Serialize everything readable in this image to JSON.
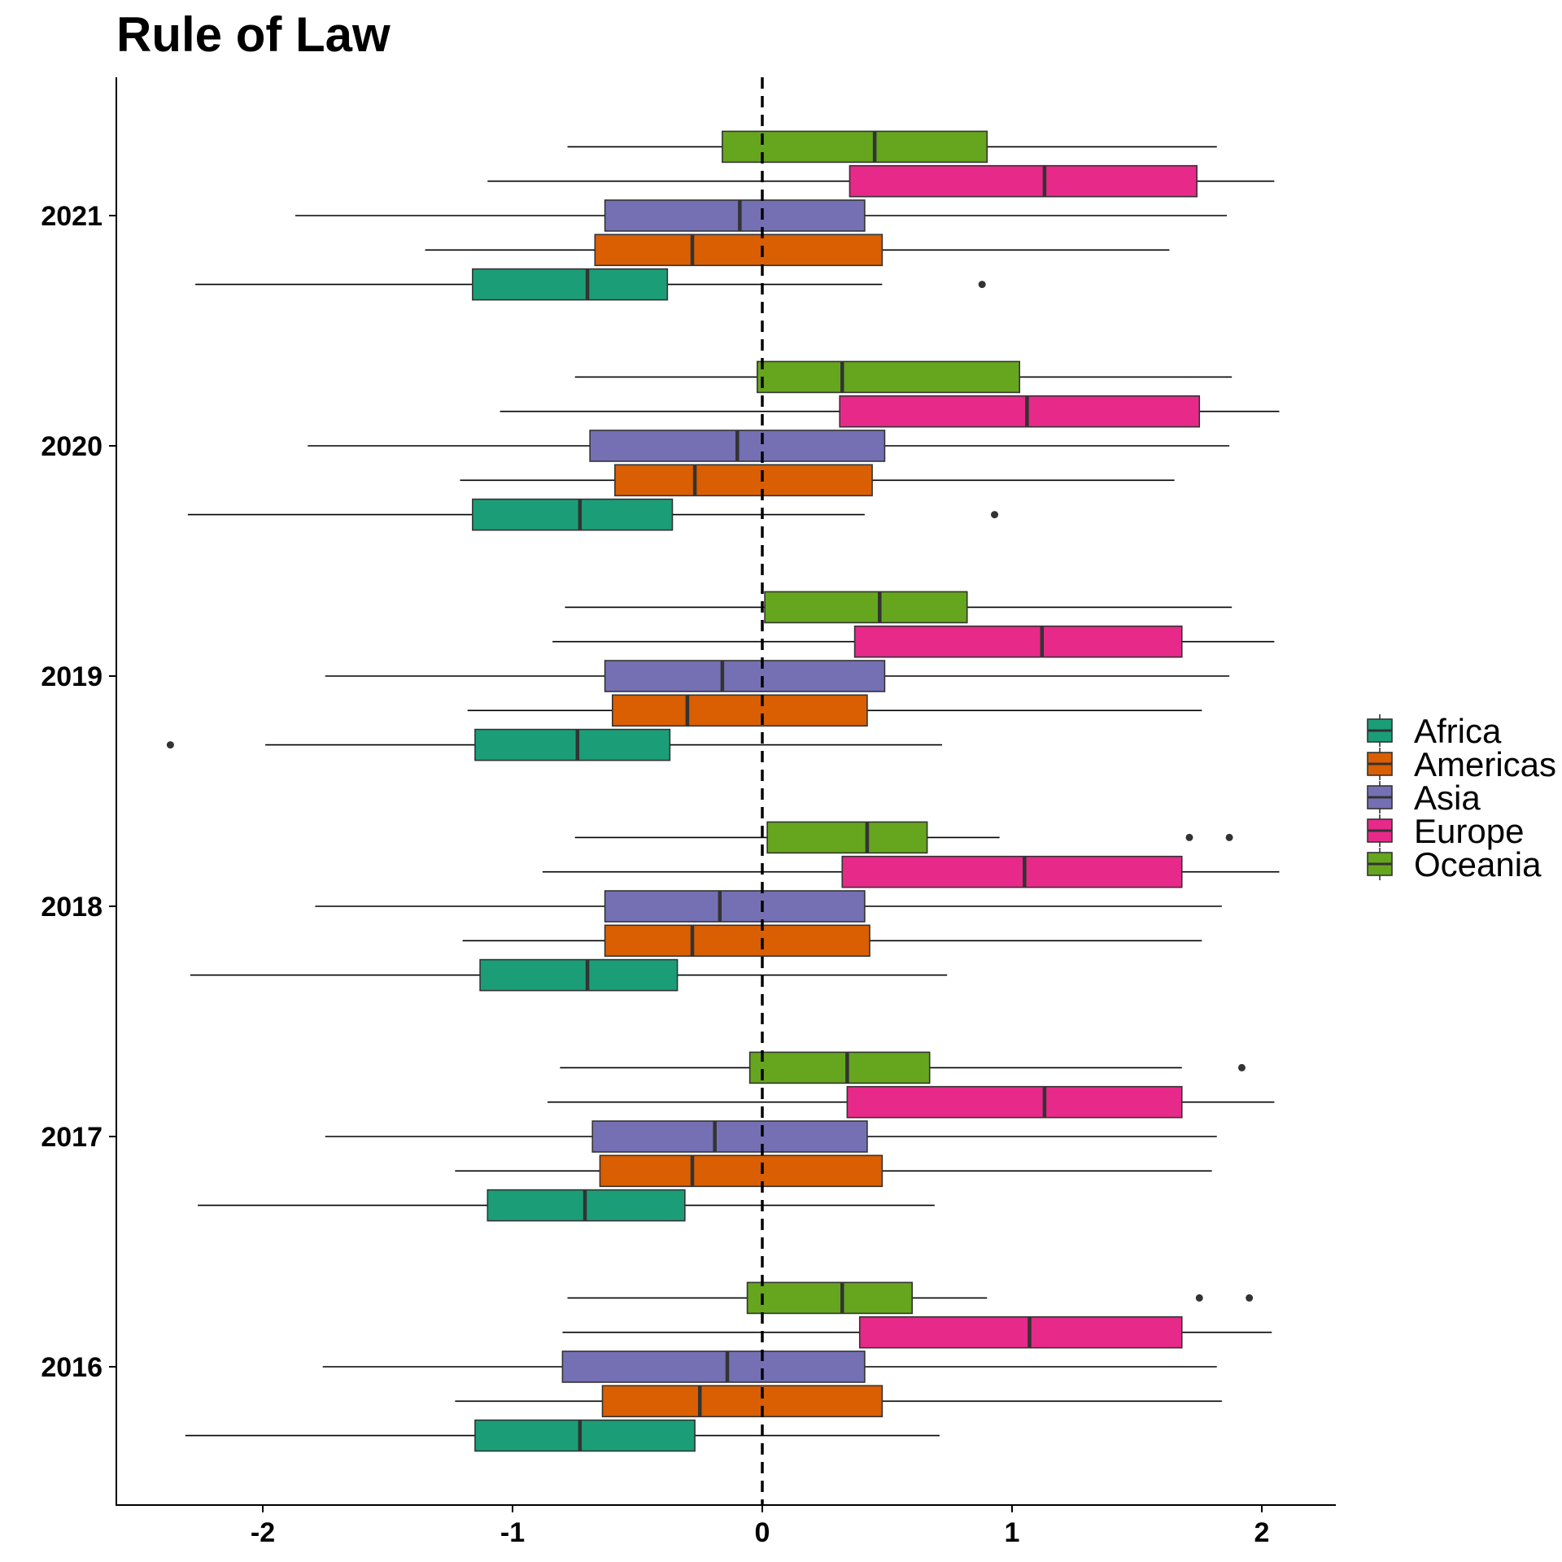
{
  "chart_data": {
    "type": "boxplot",
    "orientation": "horizontal",
    "title": "Rule of Law",
    "xlabel": "",
    "ylabel": "",
    "xlim": [
      -2.6,
      2.3
    ],
    "xticks": [
      -2,
      -1,
      0,
      1,
      2
    ],
    "xtick_labels": [
      "-2",
      "-1",
      "0",
      "1",
      "2"
    ],
    "categories": [
      "2016",
      "2017",
      "2018",
      "2019",
      "2020",
      "2021"
    ],
    "reference_line": {
      "x": 0,
      "style": "dashed"
    },
    "grid": false,
    "legend_position": "right",
    "series": [
      {
        "name": "Africa",
        "color": "#1b9e77",
        "boxes": [
          {
            "category": "2016",
            "whisker_low": -2.31,
            "q1": -1.15,
            "median": -0.73,
            "q3": -0.27,
            "whisker_high": 0.71,
            "outliers": []
          },
          {
            "category": "2017",
            "whisker_low": -2.26,
            "q1": -1.1,
            "median": -0.71,
            "q3": -0.31,
            "whisker_high": 0.69,
            "outliers": []
          },
          {
            "category": "2018",
            "whisker_low": -2.29,
            "q1": -1.13,
            "median": -0.7,
            "q3": -0.34,
            "whisker_high": 0.74,
            "outliers": []
          },
          {
            "category": "2019",
            "whisker_low": -1.99,
            "q1": -1.15,
            "median": -0.74,
            "q3": -0.37,
            "whisker_high": 0.72,
            "outliers": [
              -2.37
            ]
          },
          {
            "category": "2020",
            "whisker_low": -2.3,
            "q1": -1.16,
            "median": -0.73,
            "q3": -0.36,
            "whisker_high": 0.41,
            "outliers": [
              0.93
            ]
          },
          {
            "category": "2021",
            "whisker_low": -2.27,
            "q1": -1.16,
            "median": -0.7,
            "q3": -0.38,
            "whisker_high": 0.48,
            "outliers": [
              0.88
            ]
          }
        ]
      },
      {
        "name": "Americas",
        "color": "#d95f02",
        "boxes": [
          {
            "category": "2016",
            "whisker_low": -1.23,
            "q1": -0.64,
            "median": -0.25,
            "q3": 0.48,
            "whisker_high": 1.84,
            "outliers": []
          },
          {
            "category": "2017",
            "whisker_low": -1.23,
            "q1": -0.65,
            "median": -0.28,
            "q3": 0.48,
            "whisker_high": 1.8,
            "outliers": []
          },
          {
            "category": "2018",
            "whisker_low": -1.2,
            "q1": -0.63,
            "median": -0.28,
            "q3": 0.43,
            "whisker_high": 1.76,
            "outliers": []
          },
          {
            "category": "2019",
            "whisker_low": -1.18,
            "q1": -0.6,
            "median": -0.3,
            "q3": 0.42,
            "whisker_high": 1.76,
            "outliers": []
          },
          {
            "category": "2020",
            "whisker_low": -1.21,
            "q1": -0.59,
            "median": -0.27,
            "q3": 0.44,
            "whisker_high": 1.65,
            "outliers": []
          },
          {
            "category": "2021",
            "whisker_low": -1.35,
            "q1": -0.67,
            "median": -0.28,
            "q3": 0.48,
            "whisker_high": 1.63,
            "outliers": []
          }
        ]
      },
      {
        "name": "Asia",
        "color": "#7570b3",
        "boxes": [
          {
            "category": "2016",
            "whisker_low": -1.76,
            "q1": -0.8,
            "median": -0.14,
            "q3": 0.41,
            "whisker_high": 1.82,
            "outliers": []
          },
          {
            "category": "2017",
            "whisker_low": -1.75,
            "q1": -0.68,
            "median": -0.19,
            "q3": 0.42,
            "whisker_high": 1.82,
            "outliers": []
          },
          {
            "category": "2018",
            "whisker_low": -1.79,
            "q1": -0.63,
            "median": -0.17,
            "q3": 0.41,
            "whisker_high": 1.84,
            "outliers": []
          },
          {
            "category": "2019",
            "whisker_low": -1.75,
            "q1": -0.63,
            "median": -0.16,
            "q3": 0.49,
            "whisker_high": 1.87,
            "outliers": []
          },
          {
            "category": "2020",
            "whisker_low": -1.82,
            "q1": -0.69,
            "median": -0.1,
            "q3": 0.49,
            "whisker_high": 1.87,
            "outliers": []
          },
          {
            "category": "2021",
            "whisker_low": -1.87,
            "q1": -0.63,
            "median": -0.09,
            "q3": 0.41,
            "whisker_high": 1.86,
            "outliers": []
          }
        ]
      },
      {
        "name": "Europe",
        "color": "#e7298a",
        "boxes": [
          {
            "category": "2016",
            "whisker_low": -0.8,
            "q1": 0.39,
            "median": 1.07,
            "q3": 1.68,
            "whisker_high": 2.04,
            "outliers": []
          },
          {
            "category": "2017",
            "whisker_low": -0.86,
            "q1": 0.34,
            "median": 1.13,
            "q3": 1.68,
            "whisker_high": 2.05,
            "outliers": []
          },
          {
            "category": "2018",
            "whisker_low": -0.88,
            "q1": 0.32,
            "median": 1.05,
            "q3": 1.68,
            "whisker_high": 2.07,
            "outliers": []
          },
          {
            "category": "2019",
            "whisker_low": -0.84,
            "q1": 0.37,
            "median": 1.12,
            "q3": 1.68,
            "whisker_high": 2.05,
            "outliers": []
          },
          {
            "category": "2020",
            "whisker_low": -1.05,
            "q1": 0.31,
            "median": 1.06,
            "q3": 1.75,
            "whisker_high": 2.07,
            "outliers": []
          },
          {
            "category": "2021",
            "whisker_low": -1.1,
            "q1": 0.35,
            "median": 1.13,
            "q3": 1.74,
            "whisker_high": 2.05,
            "outliers": []
          }
        ]
      },
      {
        "name": "Oceania",
        "color": "#66a61e",
        "boxes": [
          {
            "category": "2016",
            "whisker_low": -0.78,
            "q1": -0.06,
            "median": 0.32,
            "q3": 0.6,
            "whisker_high": 0.9,
            "outliers": [
              1.75,
              1.95
            ]
          },
          {
            "category": "2017",
            "whisker_low": -0.81,
            "q1": -0.05,
            "median": 0.34,
            "q3": 0.67,
            "whisker_high": 1.68,
            "outliers": [
              1.92
            ]
          },
          {
            "category": "2018",
            "whisker_low": -0.75,
            "q1": 0.02,
            "median": 0.42,
            "q3": 0.66,
            "whisker_high": 0.95,
            "outliers": [
              1.71,
              1.87
            ]
          },
          {
            "category": "2019",
            "whisker_low": -0.79,
            "q1": 0.01,
            "median": 0.47,
            "q3": 0.82,
            "whisker_high": 1.88,
            "outliers": []
          },
          {
            "category": "2020",
            "whisker_low": -0.75,
            "q1": -0.02,
            "median": 0.32,
            "q3": 1.03,
            "whisker_high": 1.88,
            "outliers": []
          },
          {
            "category": "2021",
            "whisker_low": -0.78,
            "q1": -0.16,
            "median": 0.45,
            "q3": 0.9,
            "whisker_high": 1.82,
            "outliers": []
          }
        ]
      }
    ]
  }
}
